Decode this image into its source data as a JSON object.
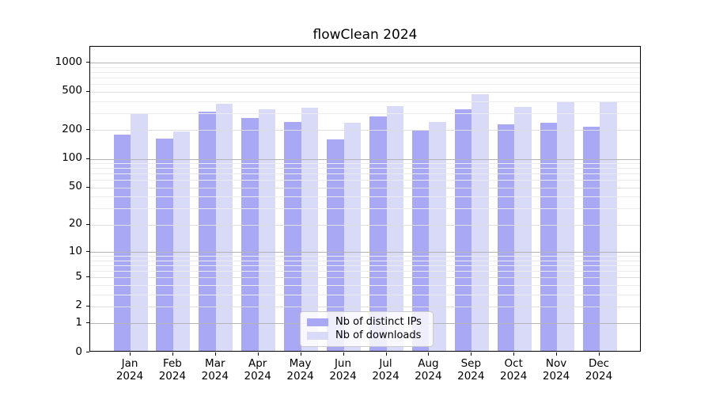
{
  "chart_data": {
    "type": "bar",
    "title": "flowClean 2024",
    "categories": [
      "Jan 2024",
      "Feb 2024",
      "Mar 2024",
      "Apr 2024",
      "May 2024",
      "Jun 2024",
      "Jul 2024",
      "Aug 2024",
      "Sep 2024",
      "Oct 2024",
      "Nov 2024",
      "Dec 2024"
    ],
    "x_tick_line1": [
      "Jan",
      "Feb",
      "Mar",
      "Apr",
      "May",
      "Jun",
      "Jul",
      "Aug",
      "Sep",
      "Oct",
      "Nov",
      "Dec"
    ],
    "x_tick_line2": "2024",
    "series": [
      {
        "name": "Nb of distinct IPs",
        "color": "#a8a8f4",
        "values": [
          171,
          157,
          300,
          256,
          232,
          153,
          266,
          190,
          315,
          222,
          228,
          207
        ]
      },
      {
        "name": "Nb of downloads",
        "color": "#d9d9f8",
        "values": [
          288,
          186,
          364,
          319,
          331,
          231,
          338,
          235,
          450,
          335,
          383,
          383
        ]
      }
    ],
    "y_axis": {
      "scale": "log(x+1)",
      "ticks": [
        0,
        1,
        2,
        5,
        10,
        20,
        50,
        100,
        200,
        500,
        1000
      ],
      "ylim_top": 1470
    },
    "grid": true,
    "legend_position": "lower-center"
  },
  "colors": {
    "spine": "#000000",
    "grid_major": "#b4b4b4",
    "grid_mid": "#dedede",
    "grid_minor": "#ececec",
    "bar_ips": "#a8a8f4",
    "bar_downloads": "#d9d9f8",
    "legend_border": "#cccccc"
  }
}
